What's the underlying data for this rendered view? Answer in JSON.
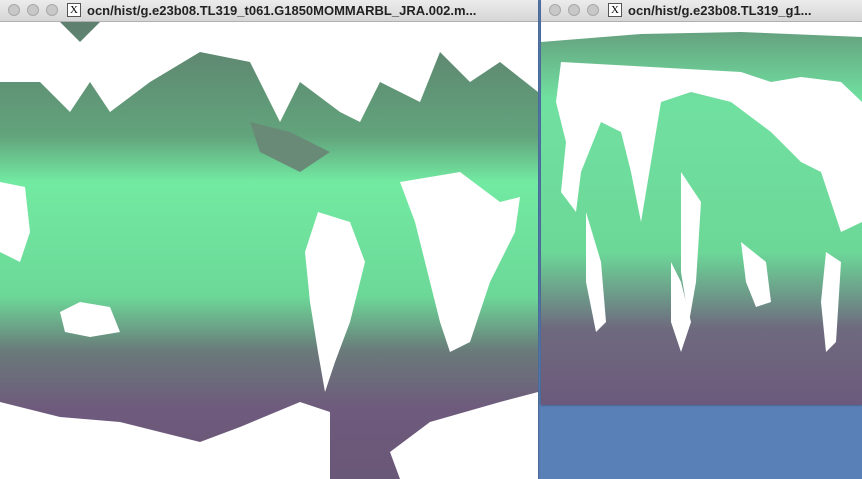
{
  "windows": [
    {
      "icon_label": "X",
      "title": "ocn/hist/g.e23b08.TL319_t061.G1850MOMMARBL_JRA.002.m..."
    },
    {
      "icon_label": "X",
      "title": "ocn/hist/g.e23b08.TL319_g1..."
    }
  ]
}
